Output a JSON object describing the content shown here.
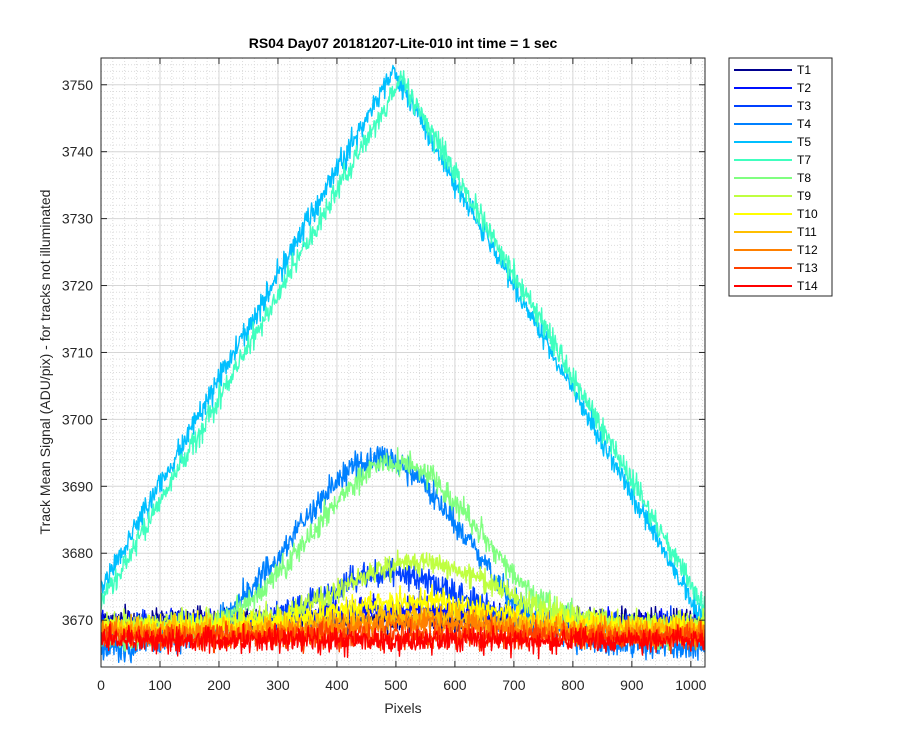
{
  "chart_data": {
    "type": "line",
    "title": "RS04 Day07 20181207-Lite-010 int time = 1 sec",
    "xlabel": "Pixels",
    "ylabel": "Track Mean Signal (ADU/pix) - for tracks not illuminated",
    "xlim": [
      0,
      1024
    ],
    "ylim": [
      3663,
      3754
    ],
    "x_ticks": [
      0,
      100,
      200,
      300,
      400,
      500,
      600,
      700,
      800,
      900,
      1000
    ],
    "y_ticks": [
      3670,
      3680,
      3690,
      3700,
      3710,
      3720,
      3730,
      3740,
      3750
    ],
    "grid": "major and minor",
    "legend_position": "outside top-right",
    "series": [
      {
        "name": "T1",
        "color": "#00008f",
        "profile": "flat",
        "base": 3670.0,
        "peak": 0,
        "peak_at": 512,
        "width": 400,
        "noise": 1.5
      },
      {
        "name": "T2",
        "color": "#0010ff",
        "profile": "gaussian",
        "base": 3669.5,
        "peak": 2.5,
        "peak_at": 512,
        "width": 250,
        "noise": 1.5
      },
      {
        "name": "T3",
        "color": "#0040ff",
        "profile": "gaussian",
        "base": 3669.0,
        "peak": 8,
        "peak_at": 490,
        "width": 230,
        "noise": 1.6
      },
      {
        "name": "T4",
        "color": "#0080ff",
        "profile": "gaussian",
        "base": 3666.0,
        "peak": 28,
        "peak_at": 470,
        "width": 280,
        "noise": 1.7
      },
      {
        "name": "T5",
        "color": "#00bfff",
        "profile": "triangle",
        "base": 3670.0,
        "peak": 82,
        "peak_at": 495,
        "width": 525,
        "noise": 1.5
      },
      {
        "name": "T7",
        "color": "#40ffbf",
        "profile": "triangle",
        "base": 3670.0,
        "peak": 81,
        "peak_at": 510,
        "width": 525,
        "noise": 1.5
      },
      {
        "name": "T8",
        "color": "#80ff80",
        "profile": "gaussian",
        "base": 3667.5,
        "peak": 26,
        "peak_at": 500,
        "width": 280,
        "noise": 1.6
      },
      {
        "name": "T9",
        "color": "#bfff40",
        "profile": "gaussian",
        "base": 3669.5,
        "peak": 9,
        "peak_at": 540,
        "width": 250,
        "noise": 1.6
      },
      {
        "name": "T10",
        "color": "#ffff00",
        "profile": "gaussian",
        "base": 3669.0,
        "peak": 4,
        "peak_at": 530,
        "width": 250,
        "noise": 1.5
      },
      {
        "name": "T11",
        "color": "#ffbf00",
        "profile": "gaussian",
        "base": 3668.5,
        "peak": 2,
        "peak_at": 540,
        "width": 260,
        "noise": 1.5
      },
      {
        "name": "T12",
        "color": "#ff8000",
        "profile": "gaussian",
        "base": 3668.0,
        "peak": 1.5,
        "peak_at": 540,
        "width": 260,
        "noise": 1.5
      },
      {
        "name": "T13",
        "color": "#ff4000",
        "profile": "flat",
        "base": 3667.5,
        "peak": 0,
        "peak_at": 512,
        "width": 400,
        "noise": 1.5
      },
      {
        "name": "T14",
        "color": "#ff0000",
        "profile": "flat",
        "base": 3667.0,
        "peak": 0,
        "peak_at": 512,
        "width": 400,
        "noise": 1.5
      }
    ]
  }
}
